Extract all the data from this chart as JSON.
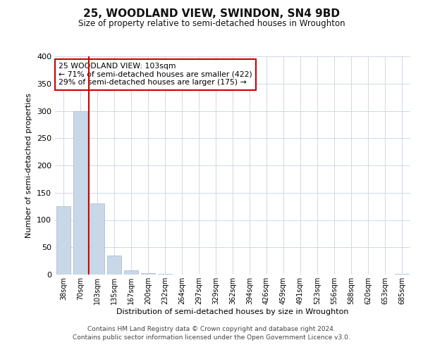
{
  "title": "25, WOODLAND VIEW, SWINDON, SN4 9BD",
  "subtitle": "Size of property relative to semi-detached houses in Wroughton",
  "bar_labels": [
    "38sqm",
    "70sqm",
    "103sqm",
    "135sqm",
    "167sqm",
    "200sqm",
    "232sqm",
    "264sqm",
    "297sqm",
    "329sqm",
    "362sqm",
    "394sqm",
    "426sqm",
    "459sqm",
    "491sqm",
    "523sqm",
    "556sqm",
    "588sqm",
    "620sqm",
    "653sqm",
    "685sqm"
  ],
  "bar_values": [
    125,
    300,
    130,
    35,
    8,
    2,
    1,
    0,
    0,
    0,
    0,
    0,
    0,
    0,
    0,
    0,
    0,
    0,
    0,
    0,
    1
  ],
  "bar_color": "#c8d8e8",
  "bar_edgecolor": "#a0b8cc",
  "property_line_x": 1.5,
  "property_line_color": "#cc0000",
  "annotation_title": "25 WOODLAND VIEW: 103sqm",
  "annotation_line1": "← 71% of semi-detached houses are smaller (422)",
  "annotation_line2": "29% of semi-detached houses are larger (175) →",
  "annotation_box_edgecolor": "#cc0000",
  "xlabel": "Distribution of semi-detached houses by size in Wroughton",
  "ylabel": "Number of semi-detached properties",
  "ylim": [
    0,
    400
  ],
  "yticks": [
    0,
    50,
    100,
    150,
    200,
    250,
    300,
    350,
    400
  ],
  "footer1": "Contains HM Land Registry data © Crown copyright and database right 2024.",
  "footer2": "Contains public sector information licensed under the Open Government Licence v3.0.",
  "background_color": "#ffffff",
  "grid_color": "#d0d8e8"
}
